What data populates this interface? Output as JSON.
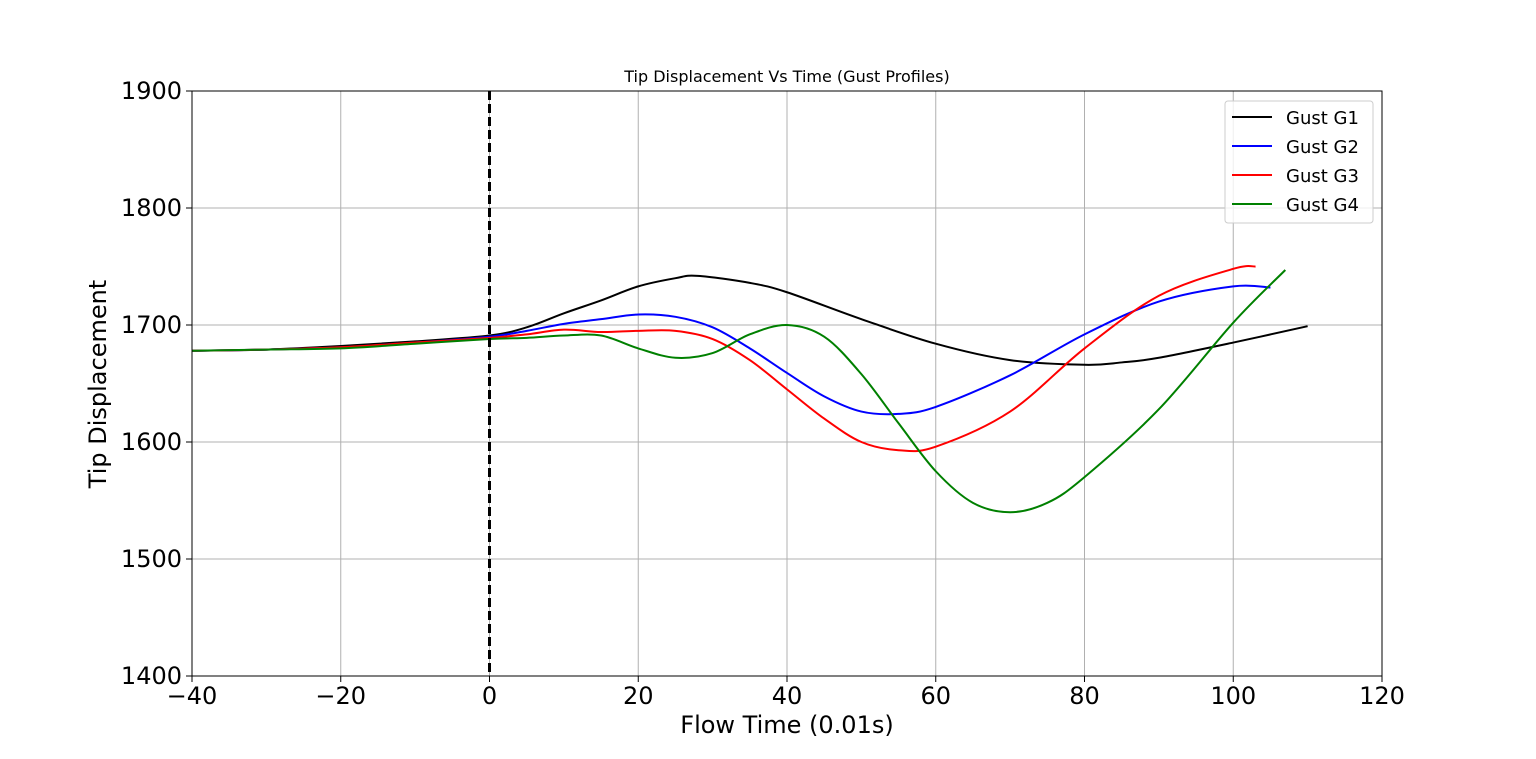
{
  "chart_data": {
    "type": "line",
    "title": "Tip Displacement Vs Time (Gust Profiles)",
    "xlabel": "Flow Time (0.01s)",
    "ylabel": "Tip Displacement",
    "xlim": [
      -40,
      120
    ],
    "ylim": [
      1400,
      1900
    ],
    "xticks": [
      -40,
      -20,
      0,
      20,
      40,
      60,
      80,
      100,
      120
    ],
    "yticks": [
      1400,
      1500,
      1600,
      1700,
      1800,
      1900
    ],
    "xtick_labels": [
      "−40",
      "−20",
      "0",
      "20",
      "40",
      "60",
      "80",
      "100",
      "120"
    ],
    "ytick_labels": [
      "1400",
      "1500",
      "1600",
      "1700",
      "1800",
      "1900"
    ],
    "grid": true,
    "legend_position": "top-right",
    "vline": {
      "x": 0,
      "style": "dashed",
      "color": "#000000"
    },
    "series": [
      {
        "name": "Gust G1",
        "color": "#000000",
        "points": [
          [
            -40,
            1678
          ],
          [
            -30,
            1679
          ],
          [
            -20,
            1682
          ],
          [
            -10,
            1686
          ],
          [
            0,
            1691
          ],
          [
            5,
            1698
          ],
          [
            10,
            1710
          ],
          [
            15,
            1721
          ],
          [
            20,
            1733
          ],
          [
            25,
            1740
          ],
          [
            28,
            1742
          ],
          [
            35,
            1736
          ],
          [
            40,
            1728
          ],
          [
            50,
            1705
          ],
          [
            60,
            1684
          ],
          [
            70,
            1670
          ],
          [
            80,
            1666
          ],
          [
            85,
            1668
          ],
          [
            90,
            1672
          ],
          [
            100,
            1685
          ],
          [
            110,
            1699
          ]
        ]
      },
      {
        "name": "Gust G2",
        "color": "#0000ff",
        "points": [
          [
            -40,
            1678
          ],
          [
            -30,
            1679
          ],
          [
            -20,
            1681
          ],
          [
            -10,
            1685
          ],
          [
            0,
            1690
          ],
          [
            5,
            1695
          ],
          [
            10,
            1701
          ],
          [
            15,
            1705
          ],
          [
            20,
            1709
          ],
          [
            25,
            1707
          ],
          [
            30,
            1698
          ],
          [
            35,
            1680
          ],
          [
            40,
            1659
          ],
          [
            45,
            1639
          ],
          [
            50,
            1626
          ],
          [
            55,
            1624
          ],
          [
            60,
            1630
          ],
          [
            70,
            1657
          ],
          [
            80,
            1692
          ],
          [
            90,
            1720
          ],
          [
            100,
            1733
          ],
          [
            105,
            1732
          ]
        ]
      },
      {
        "name": "Gust G3",
        "color": "#ff0000",
        "points": [
          [
            -40,
            1678
          ],
          [
            -30,
            1679
          ],
          [
            -20,
            1681
          ],
          [
            -10,
            1685
          ],
          [
            0,
            1689
          ],
          [
            5,
            1692
          ],
          [
            10,
            1696
          ],
          [
            15,
            1694
          ],
          [
            20,
            1695
          ],
          [
            25,
            1695
          ],
          [
            30,
            1688
          ],
          [
            35,
            1670
          ],
          [
            40,
            1645
          ],
          [
            45,
            1620
          ],
          [
            50,
            1600
          ],
          [
            55,
            1593
          ],
          [
            60,
            1596
          ],
          [
            70,
            1626
          ],
          [
            80,
            1680
          ],
          [
            90,
            1725
          ],
          [
            100,
            1748
          ],
          [
            103,
            1750
          ]
        ]
      },
      {
        "name": "Gust G4",
        "color": "#008000",
        "points": [
          [
            -40,
            1678
          ],
          [
            -30,
            1679
          ],
          [
            -20,
            1680
          ],
          [
            -10,
            1684
          ],
          [
            0,
            1688
          ],
          [
            5,
            1689
          ],
          [
            10,
            1691
          ],
          [
            15,
            1691
          ],
          [
            20,
            1680
          ],
          [
            25,
            1672
          ],
          [
            30,
            1676
          ],
          [
            35,
            1692
          ],
          [
            40,
            1700
          ],
          [
            45,
            1690
          ],
          [
            50,
            1658
          ],
          [
            55,
            1616
          ],
          [
            60,
            1575
          ],
          [
            65,
            1548
          ],
          [
            70,
            1540
          ],
          [
            75,
            1548
          ],
          [
            80,
            1570
          ],
          [
            90,
            1628
          ],
          [
            100,
            1702
          ],
          [
            107,
            1747
          ]
        ]
      }
    ]
  }
}
